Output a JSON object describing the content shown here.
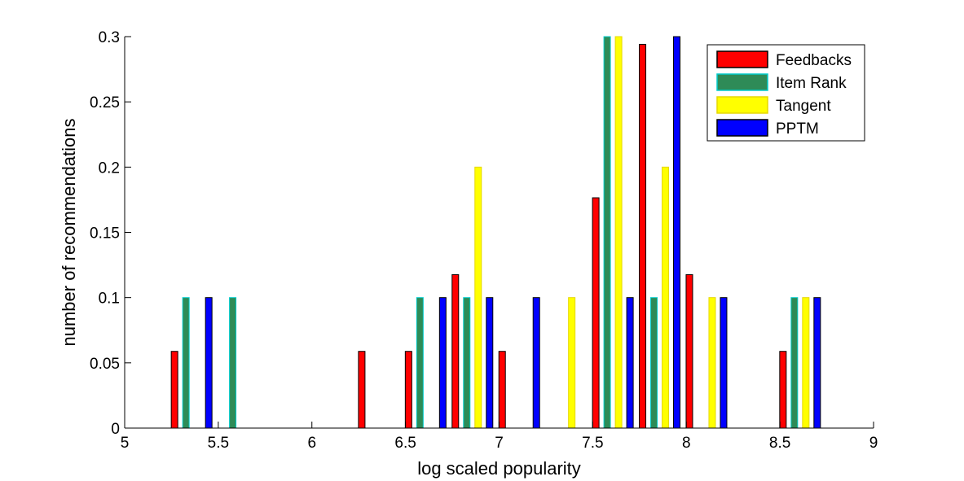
{
  "chart_data": {
    "type": "bar",
    "title": "",
    "xlabel": "log scaled popularity",
    "ylabel": "number of recommendations",
    "xlim": [
      5,
      9
    ],
    "ylim": [
      0,
      0.3
    ],
    "xticks": [
      "5",
      "5.5",
      "6",
      "6.5",
      "7",
      "7.5",
      "8",
      "8.5",
      "9"
    ],
    "yticks": [
      "0",
      "0.05",
      "0.1",
      "0.15",
      "0.2",
      "0.25",
      "0.3"
    ],
    "grid": false,
    "legend_position": "top-right",
    "bin_centers": [
      5.125,
      5.375,
      5.625,
      5.875,
      6.125,
      6.375,
      6.625,
      6.875,
      7.125,
      7.375,
      7.625,
      7.875,
      8.125,
      8.375,
      8.625,
      8.875
    ],
    "series": [
      {
        "name": "Feedbacks",
        "color": "#ff0000",
        "edge": "#000000",
        "values": [
          0,
          0.0588,
          0,
          0,
          0,
          0.0588,
          0.0588,
          0.1176,
          0.0588,
          0,
          0.1765,
          0.2941,
          0.1176,
          0,
          0.0588,
          0
        ]
      },
      {
        "name": "Item Rank",
        "color": "#2e8b57",
        "edge": "#00cccc",
        "values": [
          0,
          0.1,
          0.1,
          0,
          0,
          0,
          0.1,
          0.1,
          0,
          0,
          0.3,
          0.1,
          0,
          0,
          0.1,
          0
        ]
      },
      {
        "name": "Tangent",
        "color": "#ffff00",
        "edge": "#e6d800",
        "values": [
          0,
          0,
          0,
          0,
          0,
          0,
          0,
          0.2,
          0,
          0.1,
          0.3,
          0.2,
          0.1,
          0,
          0.1,
          0
        ]
      },
      {
        "name": "PPTM",
        "color": "#0000ff",
        "edge": "#000000",
        "values": [
          0,
          0.1,
          0,
          0,
          0,
          0,
          0.1,
          0.1,
          0.1,
          0,
          0.1,
          0.3,
          0.1,
          0,
          0.1,
          0
        ]
      }
    ]
  }
}
